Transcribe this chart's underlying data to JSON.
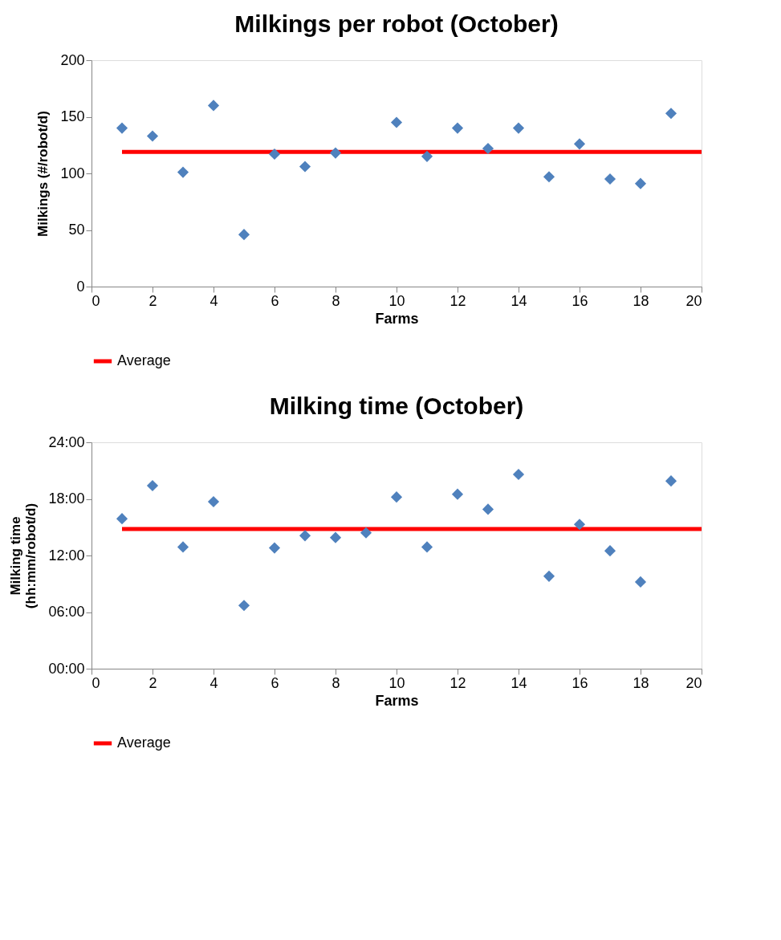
{
  "chart_data": [
    {
      "type": "scatter",
      "title": "Milkings per robot (October)",
      "xlabel": "Farms",
      "ylabel": "Milkings (#/robot/d)",
      "xlim": [
        0,
        20
      ],
      "xticks": [
        0,
        2,
        4,
        6,
        8,
        10,
        12,
        14,
        16,
        18,
        20
      ],
      "ylim": [
        0,
        200
      ],
      "yticks": [
        0,
        50,
        100,
        150,
        200
      ],
      "grid": false,
      "legend": "bottom",
      "series": [
        {
          "color": "#4f81bd",
          "marker": "diamond",
          "x": [
            1,
            2,
            3,
            4,
            5,
            6,
            7,
            8,
            10,
            11,
            12,
            13,
            14,
            15,
            16,
            17,
            18,
            19
          ],
          "values": [
            140,
            133,
            101,
            160,
            46,
            117,
            106,
            118,
            145,
            115,
            140,
            122,
            140,
            97,
            126,
            95,
            91,
            153
          ]
        },
        {
          "type": "line",
          "name": "Average",
          "color": "#ff0000",
          "x": [
            1,
            20
          ],
          "values": [
            119,
            119
          ]
        }
      ]
    },
    {
      "type": "scatter",
      "title": "Milking time (October)",
      "xlabel": "Farms",
      "ylabel": "Milking time\n(hh:mm/robot/d)",
      "xlim": [
        0,
        20
      ],
      "xticks": [
        0,
        2,
        4,
        6,
        8,
        10,
        12,
        14,
        16,
        18,
        20
      ],
      "ylim": [
        0,
        24
      ],
      "yticks": [
        {
          "value": 0,
          "label": "00:00"
        },
        {
          "value": 6,
          "label": "06:00"
        },
        {
          "value": 12,
          "label": "12:00"
        },
        {
          "value": 18,
          "label": "18:00"
        },
        {
          "value": 24,
          "label": "24:00"
        }
      ],
      "grid": false,
      "legend": "bottom",
      "series": [
        {
          "color": "#4f81bd",
          "marker": "diamond",
          "x": [
            1,
            2,
            3,
            4,
            5,
            6,
            7,
            8,
            9,
            10,
            11,
            12,
            13,
            14,
            15,
            16,
            17,
            18,
            19
          ],
          "values": [
            15.9,
            19.4,
            12.9,
            17.7,
            6.7,
            12.8,
            14.1,
            13.9,
            14.4,
            18.2,
            12.9,
            18.5,
            16.9,
            20.6,
            9.8,
            15.3,
            12.5,
            9.2,
            19.9
          ]
        },
        {
          "type": "line",
          "name": "Average",
          "color": "#ff0000",
          "x": [
            1,
            20
          ],
          "values": [
            14.8,
            14.8
          ]
        }
      ]
    }
  ]
}
